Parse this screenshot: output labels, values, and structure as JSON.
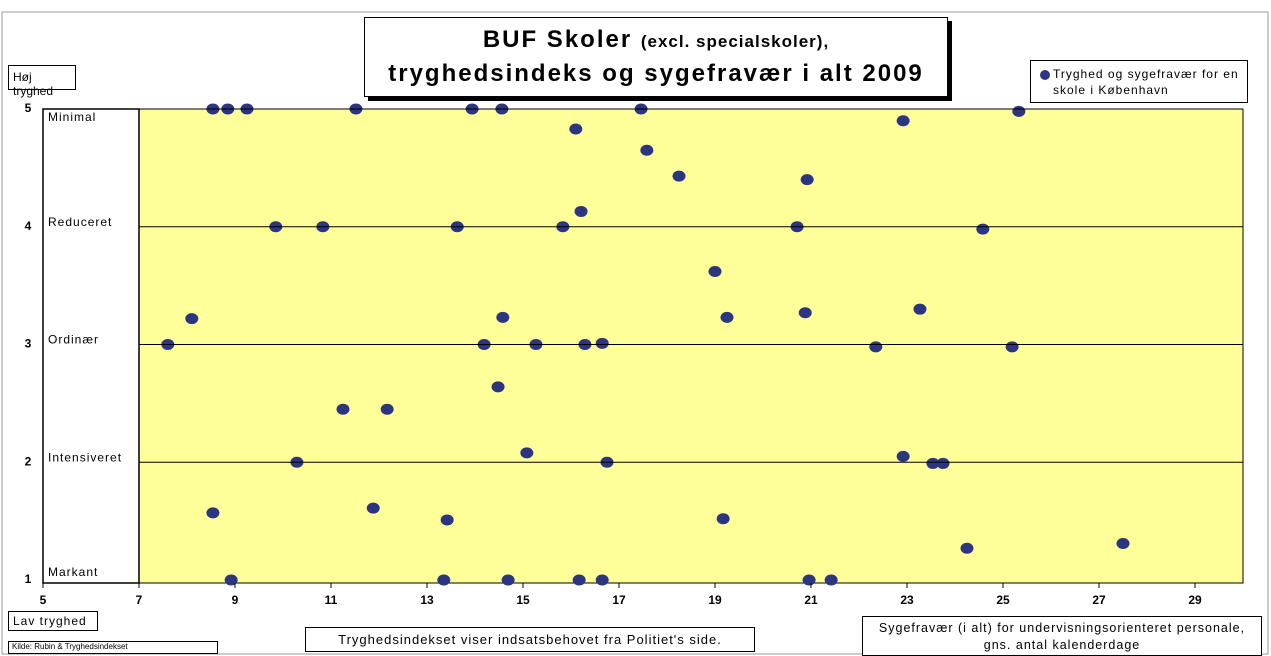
{
  "chart_data": {
    "type": "scatter",
    "title": {
      "main": "BUF Skoler",
      "note": "(excl. specialskoler),",
      "line2": "tryghedsindeks og sygefravær i alt 2009"
    },
    "y_top_label": "Høj tryghed",
    "y_bottom_label": "Lav tryghed",
    "source": "Kilde: Rubin & Tryghedsindekset",
    "footnote": "Tryghedsindekset viser indsatsbehovet fra Politiet's side.",
    "x_label": "Sygefravær (i alt) for undervisningsorienteret personale, gns. antal kalenderdage",
    "xlim": [
      5,
      30
    ],
    "xticks": [
      5,
      7,
      9,
      11,
      13,
      15,
      17,
      19,
      21,
      23,
      25,
      27,
      29
    ],
    "ylim": [
      1,
      5
    ],
    "yticks": [
      1,
      2,
      3,
      4,
      5
    ],
    "ytick_names": [
      "Markant",
      "Intensiveret",
      "Ordinær",
      "Reduceret",
      "Minimal"
    ],
    "grid": true,
    "legend": "top-right",
    "series": [
      {
        "name": "Tryghed og sygefravær for en skole i København",
        "color": "#2b3580",
        "x": [
          8.54,
          8.85,
          9.25,
          11.52,
          13.94,
          14.56,
          17.46,
          25.33,
          22.92,
          16.1,
          17.58,
          18.25,
          20.92,
          16.21,
          9.85,
          10.83,
          13.63,
          15.83,
          20.71,
          24.58,
          19.0,
          23.27,
          20.88,
          19.25,
          14.58,
          8.1,
          7.6,
          14.19,
          15.27,
          16.29,
          16.65,
          22.35,
          25.19,
          14.48,
          11.25,
          12.17,
          15.08,
          22.92,
          10.29,
          16.75,
          23.54,
          23.75,
          11.88,
          8.54,
          13.42,
          19.17,
          27.5,
          24.25,
          8.92,
          13.35,
          14.69,
          16.17,
          16.65,
          20.96,
          21.42
        ],
        "values": [
          5,
          5,
          5,
          5,
          5,
          5,
          5,
          4.98,
          4.9,
          4.83,
          4.65,
          4.43,
          4.4,
          4.13,
          4,
          4,
          4,
          4,
          4,
          3.98,
          3.62,
          3.3,
          3.27,
          3.23,
          3.23,
          3.22,
          3,
          3,
          3,
          3,
          3.01,
          2.98,
          2.98,
          2.64,
          2.45,
          2.45,
          2.08,
          2.05,
          2,
          2,
          1.99,
          1.99,
          1.61,
          1.57,
          1.51,
          1.52,
          1.31,
          1.27,
          1,
          1,
          1,
          1,
          1,
          1,
          1
        ]
      }
    ]
  }
}
